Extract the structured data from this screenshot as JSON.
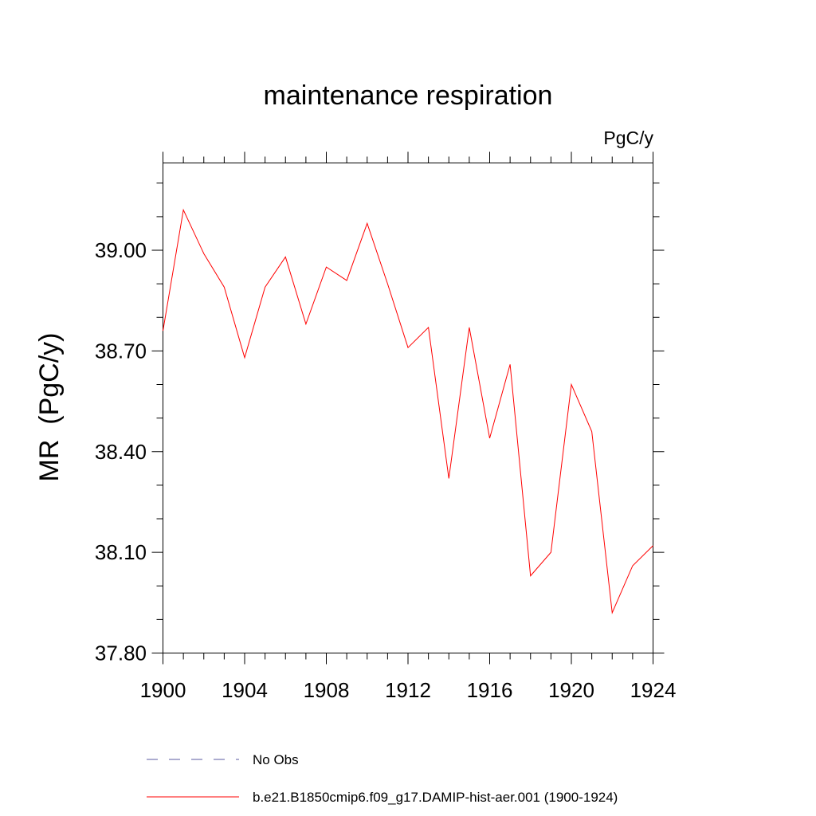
{
  "chart_data": {
    "type": "line",
    "title": "maintenance respiration",
    "units_label": "PgC/y",
    "ylabel": "MR  (PgC/y)",
    "xlabel": "",
    "xlim": [
      1900,
      1924
    ],
    "ylim": [
      37.8,
      39.26
    ],
    "x_ticks": [
      "1900",
      "1904",
      "1908",
      "1912",
      "1916",
      "1920",
      "1924"
    ],
    "y_ticks": [
      "37.80",
      "38.10",
      "38.40",
      "38.70",
      "39.00"
    ],
    "grid": false,
    "legend_position": "bottom",
    "series": [
      {
        "name": "b.e21.B1850cmip6.f09_g17.DAMIP-hist-aer.001 (1900-1924)",
        "color": "#ff0000",
        "style": "solid",
        "x": [
          1900,
          1901,
          1902,
          1903,
          1904,
          1905,
          1906,
          1907,
          1908,
          1909,
          1910,
          1911,
          1912,
          1913,
          1914,
          1915,
          1916,
          1917,
          1918,
          1919,
          1920,
          1921,
          1922,
          1923,
          1924
        ],
        "values": [
          38.76,
          39.12,
          38.99,
          38.89,
          38.68,
          38.89,
          38.98,
          38.78,
          38.95,
          38.91,
          39.08,
          38.9,
          38.71,
          38.77,
          38.32,
          38.77,
          38.44,
          38.66,
          38.03,
          38.1,
          38.6,
          38.46,
          37.92,
          38.06,
          38.12
        ]
      }
    ],
    "legend": [
      {
        "label": "No Obs",
        "color": "#5a5aa0",
        "style": "dashed"
      },
      {
        "label": "b.e21.B1850cmip6.f09_g17.DAMIP-hist-aer.001 (1900-1924)",
        "color": "#ff0000",
        "style": "solid"
      }
    ]
  }
}
